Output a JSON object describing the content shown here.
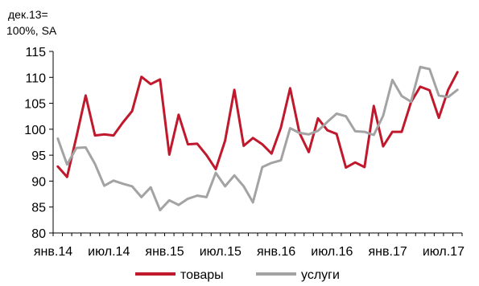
{
  "chart_data": {
    "type": "line",
    "unit_label_line1": "дек.13=",
    "unit_label_line2": "100%, SA",
    "ylim": [
      80,
      115
    ],
    "y_ticks": [
      80,
      85,
      90,
      95,
      100,
      105,
      110,
      115
    ],
    "x_tick_labels": [
      "янв.14",
      "июл.14",
      "янв.15",
      "июл.15",
      "янв.16",
      "июл.16",
      "янв.17",
      "июл.17"
    ],
    "x_start": "2014-01",
    "x_end": "2017-08",
    "legend_position": "bottom",
    "series": [
      {
        "name": "товары",
        "color": "#c0182c",
        "values": [
          92.8,
          90.8,
          98.5,
          106.5,
          98.8,
          99.0,
          98.8,
          101.3,
          103.5,
          110.1,
          108.7,
          109.6,
          95.1,
          102.8,
          97.1,
          97.2,
          95.0,
          92.3,
          97.8,
          107.6,
          96.8,
          98.3,
          97.1,
          95.3,
          100.3,
          107.9,
          99.3,
          95.6,
          102.1,
          99.8,
          99.1,
          92.6,
          93.6,
          92.7,
          104.5,
          96.7,
          99.5,
          99.5,
          105.2,
          108.2,
          107.5,
          102.2,
          107.6,
          111.0
        ]
      },
      {
        "name": "услуги",
        "color": "#a3a3a3",
        "values": [
          98.2,
          93.2,
          96.4,
          96.5,
          93.3,
          89.1,
          90.1,
          89.5,
          89.0,
          86.9,
          88.8,
          84.4,
          86.3,
          85.4,
          86.6,
          87.2,
          86.9,
          91.6,
          89.0,
          91.1,
          89.0,
          85.9,
          92.7,
          93.5,
          94.0,
          100.2,
          99.3,
          99.0,
          99.7,
          101.4,
          103.0,
          102.5,
          99.6,
          99.5,
          98.9,
          102.6,
          109.5,
          106.4,
          105.3,
          112.0,
          111.6,
          106.5,
          106.2,
          107.6
        ]
      }
    ]
  }
}
